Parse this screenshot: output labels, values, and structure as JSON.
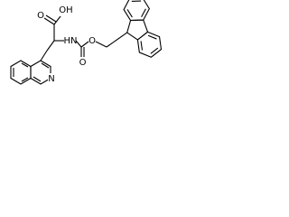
{
  "atoms": [
    {
      "label": "OH"
    },
    {
      "label": "O"
    },
    {
      "label": "HN"
    },
    {
      "label": "O"
    },
    {
      "label": "O"
    },
    {
      "label": "N"
    }
  ]
}
